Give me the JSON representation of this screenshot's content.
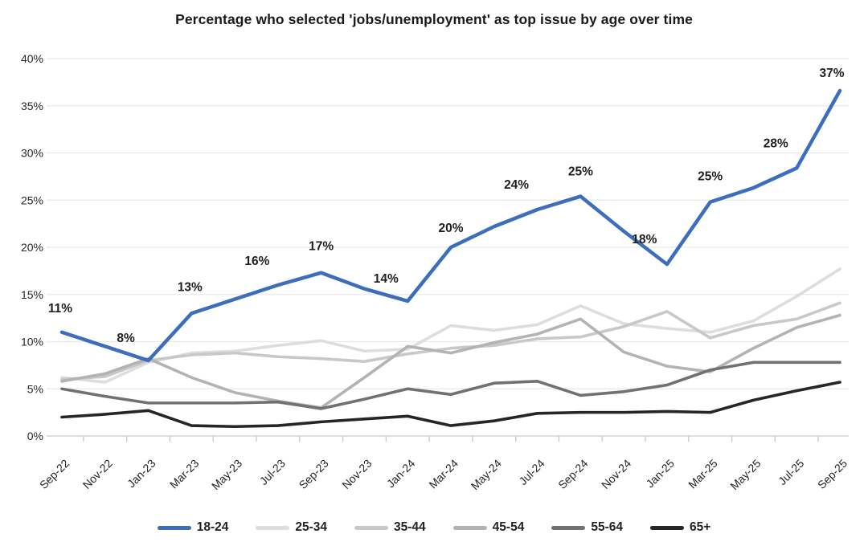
{
  "chart_data": {
    "type": "line",
    "title": "Percentage who selected 'jobs/unemployment' as top issue by age over time",
    "xlabel": "",
    "ylabel": "",
    "ylim": [
      0,
      40
    ],
    "y_step": 5,
    "grid": "horizontal",
    "legend_position": "bottom",
    "y_ticks": [
      "0%",
      "5%",
      "10%",
      "15%",
      "20%",
      "25%",
      "30%",
      "35%",
      "40%"
    ],
    "categories": [
      "Sep-22",
      "Nov-22",
      "Jan-23",
      "Mar-23",
      "May-23",
      "Jul-23",
      "Sep-23",
      "Nov-23",
      "Jan-24",
      "Mar-24",
      "May-24",
      "Jul-24",
      "Sep-24",
      "Nov-24",
      "Jan-25",
      "Mar-25",
      "May-25",
      "Jul-25",
      "Sep-25"
    ],
    "series": [
      {
        "name": "18-24",
        "color": "#3D6EBD",
        "width": 4.5,
        "values": [
          11,
          9.5,
          8,
          13,
          14.5,
          16,
          17.3,
          15.6,
          14.3,
          20,
          22.2,
          24,
          25.4,
          21.7,
          18.2,
          24.8,
          26.3,
          28.4,
          36.6
        ],
        "point_labels": [
          {
            "i": 0,
            "text": "11%",
            "dx": -2,
            "dy": -25
          },
          {
            "i": 2,
            "text": "8%",
            "dx": -28,
            "dy": -23
          },
          {
            "i": 3,
            "text": "13%",
            "dx": -2,
            "dy": -28
          },
          {
            "i": 5,
            "text": "16%",
            "dx": -26,
            "dy": -25
          },
          {
            "i": 6,
            "text": "17%",
            "dx": 0,
            "dy": -28
          },
          {
            "i": 8,
            "text": "14%",
            "dx": -27,
            "dy": -23
          },
          {
            "i": 9,
            "text": "20%",
            "dx": 0,
            "dy": -19
          },
          {
            "i": 11,
            "text": "24%",
            "dx": -26,
            "dy": -26
          },
          {
            "i": 12,
            "text": "25%",
            "dx": 0,
            "dy": -26
          },
          {
            "i": 14,
            "text": "18%",
            "dx": -28,
            "dy": -26
          },
          {
            "i": 15,
            "text": "25%",
            "dx": 0,
            "dy": -27
          },
          {
            "i": 17,
            "text": "28%",
            "dx": -26,
            "dy": -26
          },
          {
            "i": 18,
            "text": "37%",
            "dx": -10,
            "dy": -17
          }
        ]
      },
      {
        "name": "25-34",
        "color": "#DDDDDD",
        "width": 3.6,
        "values": [
          6.2,
          5.7,
          7.8,
          8.8,
          9.0,
          9.6,
          10.1,
          9.0,
          9.2,
          11.7,
          11.2,
          11.8,
          13.8,
          11.9,
          11.4,
          11.0,
          12.2,
          14.8,
          17.7
        ],
        "point_labels": []
      },
      {
        "name": "35-44",
        "color": "#C8C8C8",
        "width": 3.6,
        "values": [
          6.0,
          6.3,
          8.0,
          8.6,
          8.8,
          8.4,
          8.2,
          7.9,
          8.7,
          9.3,
          9.6,
          10.3,
          10.5,
          11.6,
          13.2,
          10.4,
          11.7,
          12.4,
          14.1
        ],
        "point_labels": []
      },
      {
        "name": "45-54",
        "color": "#B3B3B3",
        "width": 3.6,
        "values": [
          5.8,
          6.6,
          8.2,
          6.2,
          4.6,
          3.7,
          3.0,
          6.2,
          9.5,
          8.8,
          9.9,
          10.8,
          12.4,
          8.9,
          7.4,
          6.8,
          9.3,
          11.5,
          12.8
        ],
        "point_labels": []
      },
      {
        "name": "55-64",
        "color": "#757070",
        "width": 3.6,
        "values": [
          5.0,
          4.2,
          3.5,
          3.5,
          3.5,
          3.6,
          2.9,
          3.9,
          5.0,
          4.4,
          5.6,
          5.8,
          4.3,
          4.7,
          5.4,
          7.0,
          7.8,
          7.8,
          7.8
        ],
        "point_labels": []
      },
      {
        "name": "65+",
        "color": "#262626",
        "width": 3.6,
        "values": [
          2.0,
          2.3,
          2.7,
          1.1,
          1.0,
          1.1,
          1.5,
          1.8,
          2.1,
          1.1,
          1.6,
          2.4,
          2.5,
          2.5,
          2.6,
          2.5,
          3.8,
          4.8,
          5.7
        ],
        "point_labels": []
      }
    ]
  }
}
